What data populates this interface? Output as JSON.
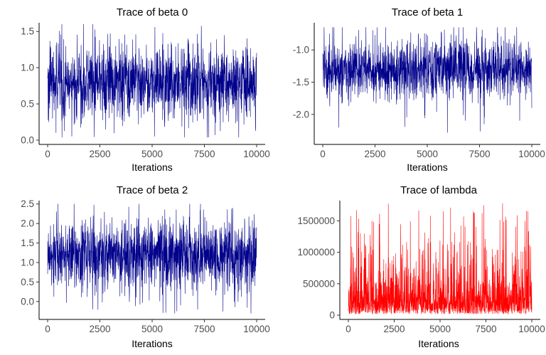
{
  "chart_data": [
    {
      "type": "line",
      "title": "Trace of beta 0",
      "xlabel": "Iterations",
      "ylabel": "",
      "xlim": [
        0,
        10000
      ],
      "ylim": [
        0.0,
        1.6
      ],
      "x_ticks": [
        0,
        2500,
        5000,
        7500,
        10000
      ],
      "x_tick_labels": [
        "0",
        "2500",
        "5000",
        "7500",
        "10000"
      ],
      "y_ticks": [
        0.0,
        0.5,
        1.0,
        1.5
      ],
      "y_tick_labels": [
        "0.0",
        "0.5",
        "1.0",
        "1.5"
      ],
      "series": [
        {
          "color": "#00008b",
          "n_iterations": 10000,
          "mean": 0.8,
          "band_low": 0.45,
          "band_high": 1.1,
          "min": 0.04,
          "max": 1.6
        }
      ],
      "grid": false,
      "legend": "none"
    },
    {
      "type": "line",
      "title": "Trace of beta 1",
      "xlabel": "Iterations",
      "ylabel": "",
      "xlim": [
        0,
        10000
      ],
      "ylim": [
        -2.4,
        -0.6
      ],
      "x_ticks": [
        0,
        2500,
        5000,
        7500,
        10000
      ],
      "x_tick_labels": [
        "0",
        "2500",
        "5000",
        "7500",
        "10000"
      ],
      "y_ticks": [
        -2.0,
        -1.5,
        -1.0
      ],
      "y_tick_labels": [
        "-2.0",
        "-1.5",
        "-1.0"
      ],
      "series": [
        {
          "color": "#00008b",
          "n_iterations": 10000,
          "mean": -1.3,
          "band_low": -1.6,
          "band_high": -1.0,
          "min": -2.3,
          "max": -0.65
        }
      ],
      "grid": false,
      "legend": "none"
    },
    {
      "type": "line",
      "title": "Trace of beta 2",
      "xlabel": "Iterations",
      "ylabel": "",
      "xlim": [
        0,
        10000
      ],
      "ylim": [
        -0.35,
        2.55
      ],
      "x_ticks": [
        0,
        2500,
        5000,
        7500,
        10000
      ],
      "x_tick_labels": [
        "0",
        "2500",
        "5000",
        "7500",
        "10000"
      ],
      "y_ticks": [
        0.0,
        0.5,
        1.0,
        1.5,
        2.0,
        2.5
      ],
      "y_tick_labels": [
        "0.0",
        "0.5",
        "1.0",
        "1.5",
        "2.0",
        "2.5"
      ],
      "series": [
        {
          "color": "#00008b",
          "n_iterations": 10000,
          "mean": 1.2,
          "band_low": 0.65,
          "band_high": 1.8,
          "min": -0.3,
          "max": 2.5
        }
      ],
      "grid": false,
      "legend": "none"
    },
    {
      "type": "line",
      "title": "Trace of lambda",
      "xlabel": "Iterations",
      "ylabel": "",
      "xlim": [
        0,
        10000
      ],
      "ylim": [
        0,
        1800000
      ],
      "x_ticks": [
        0,
        2500,
        5000,
        7500,
        10000
      ],
      "x_tick_labels": [
        "0",
        "2500",
        "5000",
        "7500",
        "10000"
      ],
      "y_ticks": [
        0,
        500000,
        1000000,
        1500000
      ],
      "y_tick_labels": [
        "0",
        "500000",
        "1000000",
        "1500000"
      ],
      "series": [
        {
          "color": "#ff0000",
          "n_iterations": 10000,
          "mean": 300000,
          "band_low": 60000,
          "band_high": 700000,
          "min": 20000,
          "max": 1780000
        }
      ],
      "grid": false,
      "legend": "none"
    }
  ]
}
